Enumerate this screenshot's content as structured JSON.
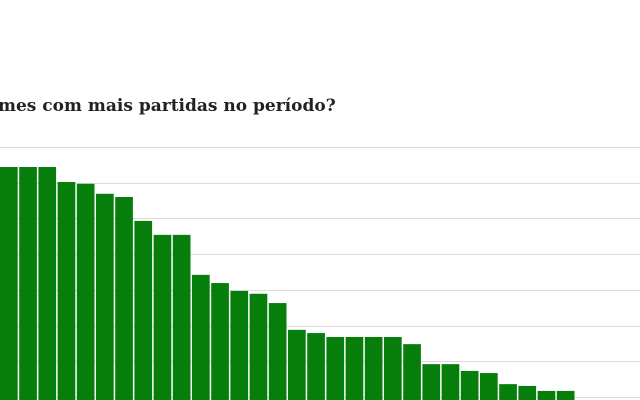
{
  "chart_data": {
    "type": "bar",
    "title": "mes com mais partidas no período?",
    "values": [
      6.44,
      6.44,
      6.44,
      6.02,
      5.97,
      5.69,
      5.6,
      4.93,
      4.54,
      4.54,
      3.42,
      3.19,
      2.97,
      2.89,
      2.63,
      1.88,
      1.79,
      1.68,
      1.68,
      1.68,
      1.68,
      1.48,
      0.92,
      0.92,
      0.73,
      0.67,
      0.36,
      0.31,
      0.17,
      0.17
    ],
    "color": "#077e0c",
    "ylim": [
      0,
      7
    ],
    "yticks": [
      0,
      1,
      2,
      3,
      4,
      5,
      6,
      7
    ],
    "grid": true
  }
}
